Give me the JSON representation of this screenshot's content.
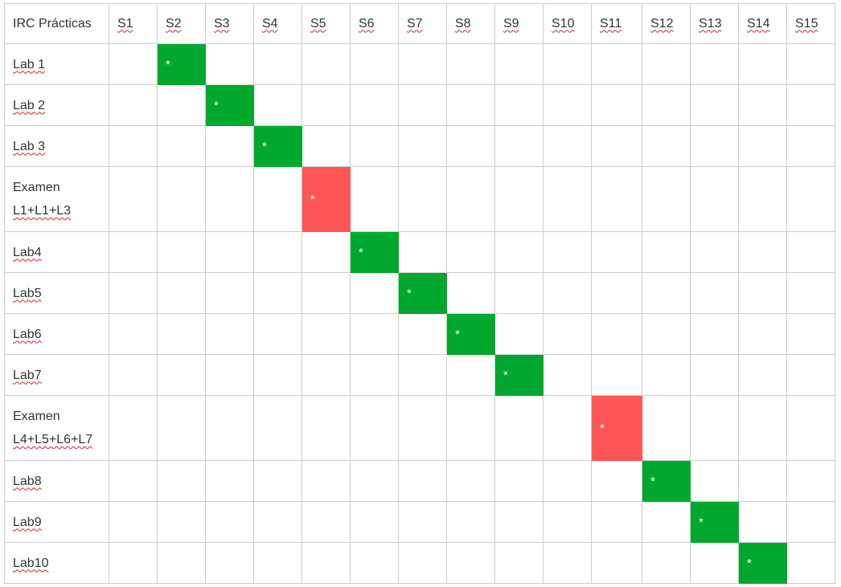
{
  "table": {
    "corner": "IRC Prácticas",
    "weeks": [
      "S1",
      "S2",
      "S3",
      "S4",
      "S5",
      "S6",
      "S7",
      "S8",
      "S9",
      "S10",
      "S11",
      "S12",
      "S13",
      "S14",
      "S15"
    ],
    "mark_symbol": "*",
    "rows": [
      {
        "label_lines": [
          "Lab 1"
        ],
        "week_index": 1,
        "kind": "lab"
      },
      {
        "label_lines": [
          "Lab 2"
        ],
        "week_index": 2,
        "kind": "lab"
      },
      {
        "label_lines": [
          "Lab 3"
        ],
        "week_index": 3,
        "kind": "lab"
      },
      {
        "label_lines": [
          "Examen",
          "L1+L1+L3"
        ],
        "week_index": 4,
        "kind": "exam"
      },
      {
        "label_lines": [
          "Lab4"
        ],
        "week_index": 5,
        "kind": "lab"
      },
      {
        "label_lines": [
          "Lab5"
        ],
        "week_index": 6,
        "kind": "lab"
      },
      {
        "label_lines": [
          "Lab6"
        ],
        "week_index": 7,
        "kind": "lab"
      },
      {
        "label_lines": [
          "Lab7"
        ],
        "week_index": 8,
        "kind": "lab"
      },
      {
        "label_lines": [
          "Examen",
          "L4+L5+L6+L7"
        ],
        "week_index": 10,
        "kind": "exam"
      },
      {
        "label_lines": [
          "Lab8"
        ],
        "week_index": 11,
        "kind": "lab"
      },
      {
        "label_lines": [
          "Lab9"
        ],
        "week_index": 12,
        "kind": "lab"
      },
      {
        "label_lines": [
          "Lab10"
        ],
        "week_index": 13,
        "kind": "lab"
      }
    ]
  },
  "colors": {
    "lab": "#00a82d",
    "exam": "#ff5555",
    "grid": "#cccccc",
    "text": "#333333",
    "spellcheck_underline": "#e02020"
  }
}
